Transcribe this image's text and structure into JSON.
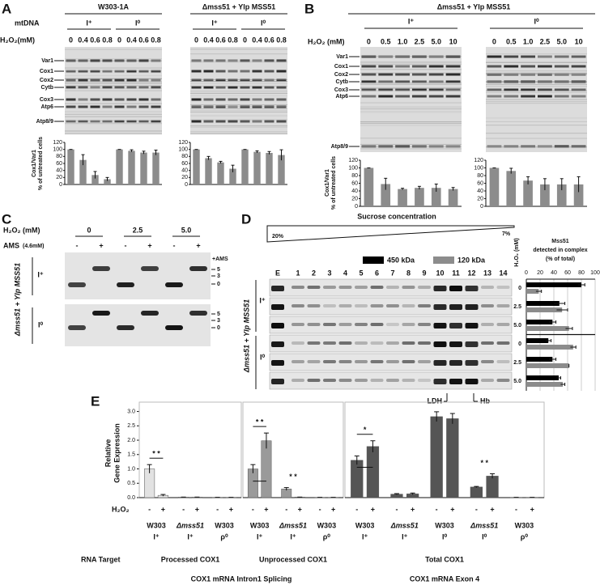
{
  "panel_a": {
    "label": "A",
    "strains": [
      "W303-1A",
      "Δmss51 + Ylp MSS51"
    ],
    "mtdna_label": "mtDNA",
    "genotypes": [
      "I⁺",
      "I⁰"
    ],
    "h2o2_label": "H₂O₂(mM)",
    "doses": [
      "0",
      "0.4",
      "0.6",
      "0.8"
    ],
    "bands": [
      "Var1",
      "Cox1",
      "Cox2",
      "Cytb",
      "Cox3",
      "Atp6",
      "Atp8/9"
    ],
    "chart": {
      "type": "bar",
      "y_label": [
        "Cox1/Var1",
        "% of untreated cells"
      ],
      "ylim": [
        0,
        120
      ],
      "yticks": [
        0,
        20,
        40,
        60,
        80,
        100,
        120
      ],
      "color": "#8c8c8c",
      "panels": [
        {
          "values": [
            100,
            70,
            27,
            15,
            100,
            96,
            91,
            91
          ],
          "errors": [
            0,
            15,
            10,
            5,
            0,
            3,
            4,
            7
          ]
        },
        {
          "values": [
            100,
            75,
            63,
            45,
            100,
            93,
            90,
            84
          ],
          "errors": [
            0,
            5,
            3,
            10,
            0,
            3,
            4,
            15
          ]
        }
      ]
    }
  },
  "panel_b": {
    "label": "B",
    "strain": "Δmss51 + Ylp MSS51",
    "genotypes": [
      "I⁺",
      "I⁰"
    ],
    "h2o2_label": "H₂O₂ (mM)",
    "doses": [
      "0",
      "0.5",
      "1.0",
      "2.5",
      "5.0",
      "10"
    ],
    "bands": [
      "Var1",
      "Cox1",
      "Cox2",
      "Cytb",
      "Cox3",
      "Atp6",
      "Atp8/9"
    ],
    "chart": {
      "type": "bar",
      "y_label": [
        "Cox1/Var1",
        "% of untreated cells"
      ],
      "ylim": [
        0,
        120
      ],
      "yticks": [
        0,
        20,
        40,
        60,
        80,
        100,
        120
      ],
      "color": "#8c8c8c",
      "panels": [
        {
          "values": [
            100,
            58,
            45,
            48,
            48,
            45
          ],
          "errors": [
            0,
            15,
            2,
            4,
            10,
            4
          ]
        },
        {
          "values": [
            100,
            92,
            67,
            57,
            57,
            57
          ],
          "errors": [
            0,
            7,
            10,
            15,
            15,
            20
          ]
        }
      ]
    }
  },
  "panel_c": {
    "label": "C",
    "h2o2_label": "H₂O₂ (mM)",
    "doses": [
      "0",
      "2.5",
      "5.0"
    ],
    "ams_label": "AMS",
    "ams_conc": "(4.6mM)",
    "treatments": [
      "-",
      "+"
    ],
    "ams_marker": "+AMS",
    "band_marks": [
      "5",
      "3",
      "0"
    ],
    "strain": "Δmss51 + Ylp MSS51",
    "genotypes": [
      "I⁺",
      "I⁰"
    ]
  },
  "panel_d": {
    "label": "D",
    "gradient_title": "Sucrose concentration",
    "gradient_ends": [
      "20%",
      "7%"
    ],
    "lanes": [
      "E",
      "1",
      "2",
      "3",
      "4",
      "5",
      "6",
      "7",
      "8",
      "9",
      "10",
      "11",
      "12",
      "13",
      "14"
    ],
    "markers": [
      "LDH",
      "Hb"
    ],
    "strain": "Δmss51 + Ylp MSS51",
    "genotypes": [
      "I⁺",
      "I⁰"
    ],
    "chart": {
      "type": "hbar",
      "title": [
        "Mss51",
        "detected in complex",
        "(% of total)"
      ],
      "y_label": "H₂O₂ (mM)",
      "xlim": [
        0,
        100
      ],
      "xticks": [
        0,
        20,
        40,
        60,
        80,
        100
      ],
      "categories": [
        "0",
        "2.5",
        "5.0",
        "0",
        "2.5",
        "5.0"
      ],
      "series": [
        {
          "name": "450 kDa",
          "color": "#000000",
          "values": [
            80,
            48,
            38,
            32,
            38,
            47
          ],
          "errors": [
            5,
            8,
            5,
            4,
            5,
            3
          ]
        },
        {
          "name": "120 kDa",
          "color": "#8c8c8c",
          "values": [
            18,
            52,
            62,
            68,
            62,
            53
          ],
          "errors": [
            4,
            8,
            5,
            4,
            0,
            3
          ]
        }
      ]
    }
  },
  "panel_e": {
    "label": "E",
    "type": "bar",
    "y_label": [
      "Relative",
      "Gene Expression"
    ],
    "ylim": [
      0,
      3.1
    ],
    "yticks": [
      {
        "value": 0,
        "label": "0.0"
      },
      0.5,
      {
        "value": 1,
        "label": "1.0"
      },
      1.5,
      {
        "value": 2,
        "label": "2.0"
      },
      2.5,
      {
        "value": 3,
        "label": "3.0"
      }
    ],
    "h2o2_label": "H₂O₂",
    "treatments": [
      "-",
      "+"
    ],
    "rna_target_label": "RNA Target",
    "panels": [
      {
        "target": "Processed COX1",
        "color": "#e2e2e2",
        "groups": [
          {
            "strain": "W303",
            "genotype": "I⁺"
          },
          {
            "strain": "Δmss51",
            "genotype": "I⁺"
          },
          {
            "strain": "W303",
            "genotype": "ρ⁰"
          }
        ],
        "values": [
          1.0,
          0.08,
          0.02,
          0.02,
          0.01,
          0.01
        ],
        "errors": [
          0.15,
          0.03,
          0,
          0,
          0,
          0
        ],
        "significance": [
          "* *",
          null,
          null
        ]
      },
      {
        "target": "Unprocessed COX1",
        "color": "#9a9a9a",
        "groups": [
          {
            "strain": "W303",
            "genotype": "I⁺"
          },
          {
            "strain": "Δmss51",
            "genotype": "I⁺"
          },
          {
            "strain": "W303",
            "genotype": "ρ⁰"
          }
        ],
        "values": [
          1.0,
          1.98,
          0.3,
          0.02,
          0.01,
          0.01
        ],
        "errors": [
          0.15,
          0.27,
          0.05,
          0,
          0,
          0
        ],
        "significance": [
          "* *",
          "* *",
          null
        ]
      },
      {
        "target": "Total COX1",
        "color": "#555555",
        "groups": [
          {
            "strain": "W303",
            "genotype": "I⁺"
          },
          {
            "strain": "Δmss51",
            "genotype": "I⁺"
          },
          {
            "strain": "W303",
            "genotype": "I⁰"
          },
          {
            "strain": "Δmss51",
            "genotype": "I⁰"
          },
          {
            "strain": "W303",
            "genotype": "ρ⁰"
          }
        ],
        "values": [
          1.3,
          1.78,
          0.12,
          0.13,
          2.82,
          2.75,
          0.37,
          0.75,
          0.01,
          0.01
        ],
        "errors": [
          0.15,
          0.2,
          0.02,
          0.03,
          0.17,
          0.18,
          0.02,
          0.08,
          0,
          0
        ],
        "significance": [
          "*",
          null,
          null,
          "* *",
          null
        ]
      }
    ],
    "assays": [
      "COX1 mRNA Intron1 Splicing",
      "COX1 mRNA Exon 4"
    ]
  }
}
